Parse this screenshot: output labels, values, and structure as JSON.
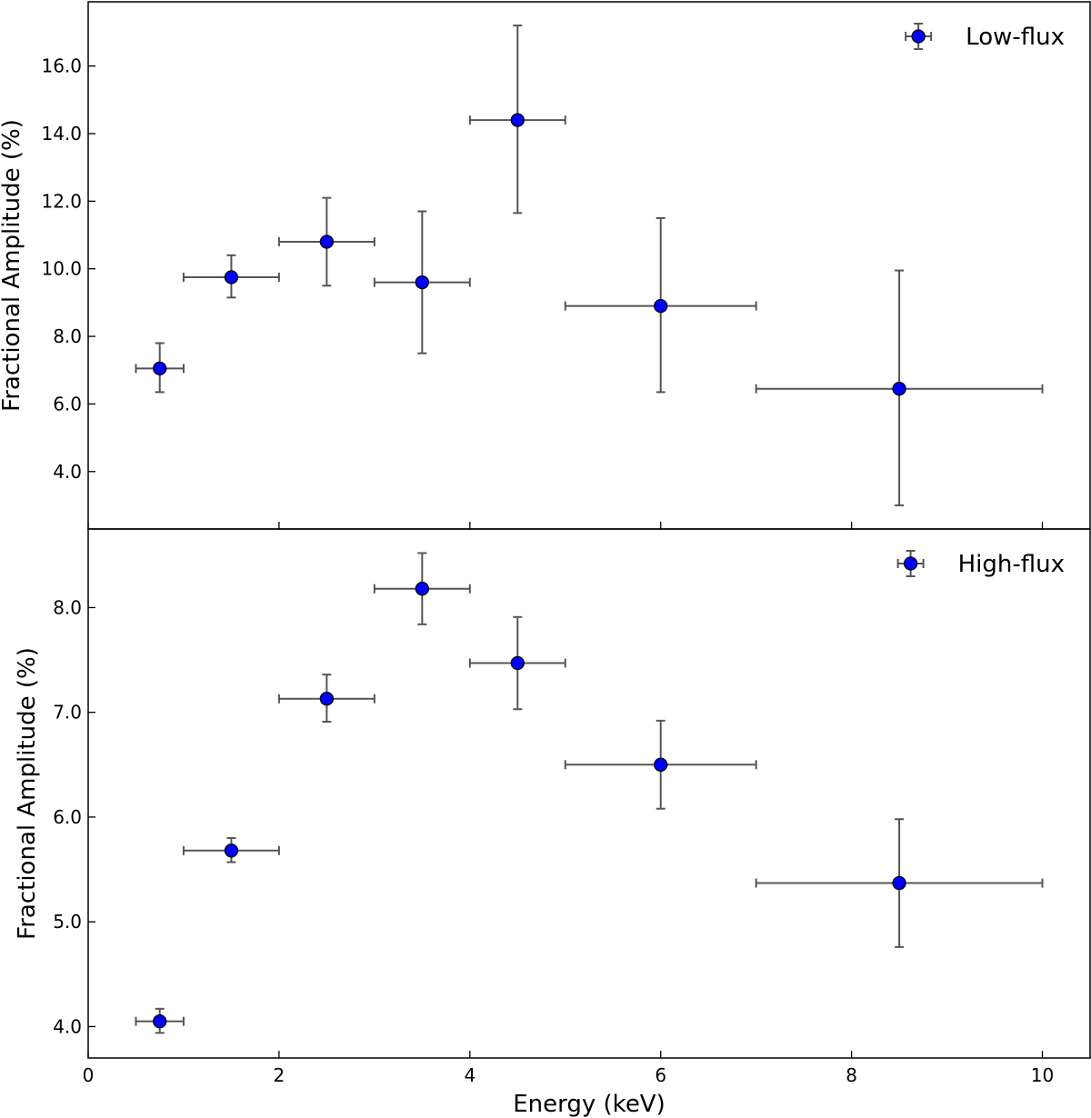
{
  "chart_data": [
    {
      "type": "scatter",
      "panel": "top",
      "xlabel": "",
      "ylabel": "Fractional Amplitude (%)",
      "xlim": [
        0,
        10.5
      ],
      "ylim": [
        2.3,
        17.9
      ],
      "x_ticks": [
        0,
        2,
        4,
        6,
        8,
        10
      ],
      "y_ticks": [
        4.0,
        6.0,
        8.0,
        10.0,
        12.0,
        14.0,
        16.0
      ],
      "y_tick_labels": [
        "4.0",
        "6.0",
        "8.0",
        "10.0",
        "12.0",
        "14.0",
        "16.0"
      ],
      "legend_position": "top-right",
      "marker_color": "#0000ff",
      "errorbar_color": "#555555",
      "series": [
        {
          "name": "Low-flux",
          "points": [
            {
              "x": 0.75,
              "x_lo": 0.5,
              "x_hi": 1.0,
              "y": 7.05,
              "y_lo": 6.35,
              "y_hi": 7.8
            },
            {
              "x": 1.5,
              "x_lo": 1.0,
              "x_hi": 2.0,
              "y": 9.75,
              "y_lo": 9.15,
              "y_hi": 10.4
            },
            {
              "x": 2.5,
              "x_lo": 2.0,
              "x_hi": 3.0,
              "y": 10.8,
              "y_lo": 9.5,
              "y_hi": 12.1
            },
            {
              "x": 3.5,
              "x_lo": 3.0,
              "x_hi": 4.0,
              "y": 9.6,
              "y_lo": 7.5,
              "y_hi": 11.7
            },
            {
              "x": 4.5,
              "x_lo": 4.0,
              "x_hi": 5.0,
              "y": 14.4,
              "y_lo": 11.65,
              "y_hi": 17.2
            },
            {
              "x": 6.0,
              "x_lo": 5.0,
              "x_hi": 7.0,
              "y": 8.9,
              "y_lo": 6.35,
              "y_hi": 11.5
            },
            {
              "x": 8.5,
              "x_lo": 7.0,
              "x_hi": 10.0,
              "y": 6.45,
              "y_lo": 3.0,
              "y_hi": 9.95
            }
          ]
        }
      ]
    },
    {
      "type": "scatter",
      "panel": "bottom",
      "xlabel": "Energy (keV)",
      "ylabel": "Fractional Amplitude (%)",
      "xlim": [
        0,
        10.5
      ],
      "ylim": [
        3.7,
        8.75
      ],
      "x_ticks": [
        0,
        2,
        4,
        6,
        8,
        10
      ],
      "x_tick_labels": [
        "0",
        "2",
        "4",
        "6",
        "8",
        "10"
      ],
      "y_ticks": [
        4.0,
        5.0,
        6.0,
        7.0,
        8.0
      ],
      "y_tick_labels": [
        "4.0",
        "5.0",
        "6.0",
        "7.0",
        "8.0"
      ],
      "legend_position": "top-right",
      "marker_color": "#0000ff",
      "errorbar_color": "#555555",
      "series": [
        {
          "name": "High-flux",
          "points": [
            {
              "x": 0.75,
              "x_lo": 0.5,
              "x_hi": 1.0,
              "y": 4.05,
              "y_lo": 3.94,
              "y_hi": 4.17
            },
            {
              "x": 1.5,
              "x_lo": 1.0,
              "x_hi": 2.0,
              "y": 5.68,
              "y_lo": 5.57,
              "y_hi": 5.8
            },
            {
              "x": 2.5,
              "x_lo": 2.0,
              "x_hi": 3.0,
              "y": 7.13,
              "y_lo": 6.91,
              "y_hi": 7.36
            },
            {
              "x": 3.5,
              "x_lo": 3.0,
              "x_hi": 4.0,
              "y": 8.18,
              "y_lo": 7.84,
              "y_hi": 8.52
            },
            {
              "x": 4.5,
              "x_lo": 4.0,
              "x_hi": 5.0,
              "y": 7.47,
              "y_lo": 7.03,
              "y_hi": 7.91
            },
            {
              "x": 6.0,
              "x_lo": 5.0,
              "x_hi": 7.0,
              "y": 6.5,
              "y_lo": 6.08,
              "y_hi": 6.92
            },
            {
              "x": 8.5,
              "x_lo": 7.0,
              "x_hi": 10.0,
              "y": 5.37,
              "y_lo": 4.76,
              "y_hi": 5.98
            }
          ]
        }
      ]
    }
  ]
}
